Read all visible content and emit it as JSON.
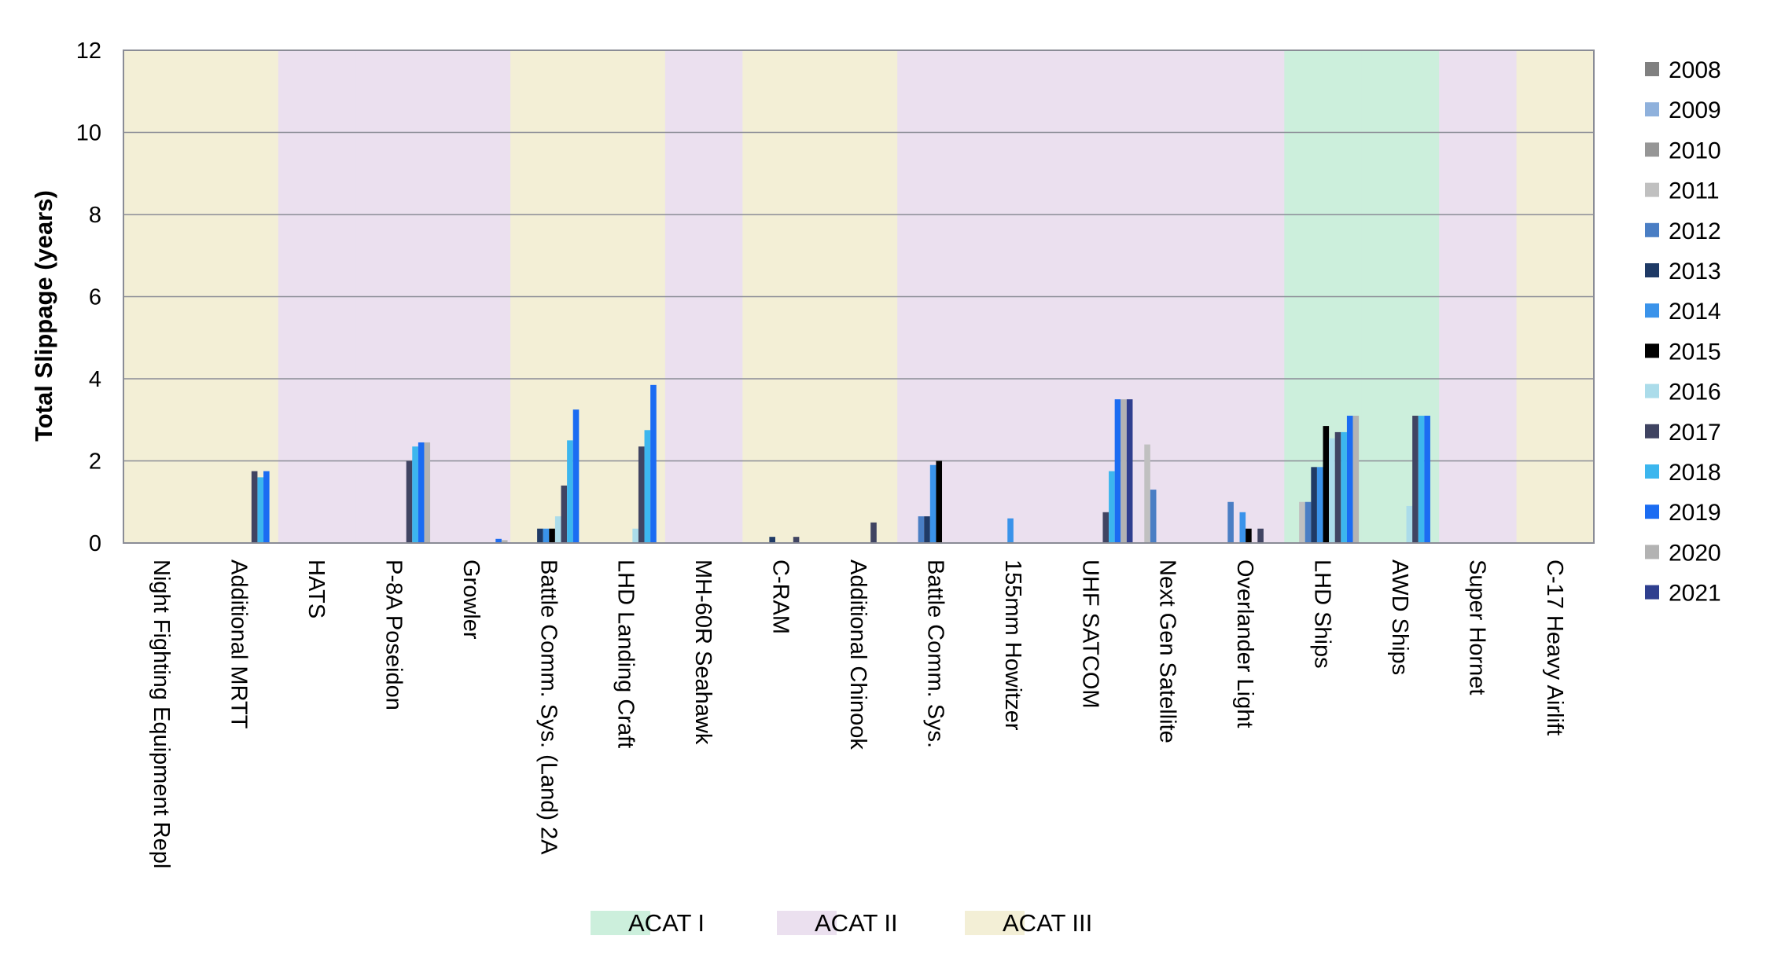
{
  "chart_data": {
    "type": "bar",
    "title": "",
    "xlabel": "",
    "ylabel": "Total Slippage (years)",
    "ylim": [
      0,
      12
    ],
    "yticks": [
      "0",
      "2",
      "4",
      "6",
      "8",
      "10",
      "12"
    ],
    "grid": true,
    "legend_position": "right",
    "categories": [
      "Night Fighting Equipment Repl",
      "Additional MRTT",
      "HATS",
      "P-8A Poseidon",
      "Growler",
      "Battle Comm. Sys. (Land) 2A",
      "LHD Landing Craft",
      "MH-60R Seahawk",
      "C-RAM",
      "Additional Chinook",
      "Battle Comm. Sys.",
      "155mm Howitzer",
      "UHF SATCOM",
      "Next Gen Satellite",
      "Overlander Light",
      "LHD Ships",
      "AWD Ships",
      "Super Hornet",
      "C-17 Heavy Airlift"
    ],
    "category_band": [
      "ACAT III",
      "ACAT III",
      "ACAT II",
      "ACAT II",
      "ACAT II",
      "ACAT III",
      "ACAT III",
      "ACAT II",
      "ACAT III",
      "ACAT III",
      "ACAT II",
      "ACAT II",
      "ACAT II",
      "ACAT II",
      "ACAT II",
      "ACAT I",
      "ACAT I",
      "ACAT II",
      "ACAT III"
    ],
    "bands": [
      {
        "name": "ACAT I",
        "color": "#ccefdc"
      },
      {
        "name": "ACAT II",
        "color": "#ebe0ef"
      },
      {
        "name": "ACAT III",
        "color": "#f3efd6"
      }
    ],
    "series": [
      {
        "name": "2008",
        "color": "#808080",
        "values": [
          0,
          0,
          0,
          0,
          0,
          0,
          0,
          0,
          0,
          0,
          0,
          0,
          0,
          0,
          0,
          0,
          0,
          0,
          0
        ]
      },
      {
        "name": "2009",
        "color": "#8fb1dc",
        "values": [
          0,
          0,
          0,
          0,
          0,
          0,
          0,
          0,
          0,
          0,
          0,
          0,
          0,
          0,
          0,
          0,
          0,
          0,
          0
        ]
      },
      {
        "name": "2010",
        "color": "#969696",
        "values": [
          0,
          0,
          0,
          0,
          0,
          0,
          0,
          0,
          0,
          0,
          0,
          0,
          0,
          0,
          0,
          0,
          0,
          0,
          0
        ]
      },
      {
        "name": "2011",
        "color": "#c0c0c0",
        "values": [
          0,
          0,
          0,
          0,
          0,
          0,
          0,
          0,
          0,
          0,
          0,
          0,
          0,
          2.4,
          0,
          1.0,
          0,
          0,
          0
        ]
      },
      {
        "name": "2012",
        "color": "#4a7ec4",
        "values": [
          0,
          0,
          0,
          0,
          0,
          0,
          0,
          0,
          0,
          0,
          0.65,
          0,
          0,
          1.3,
          1.0,
          1.0,
          0,
          0,
          0
        ]
      },
      {
        "name": "2013",
        "color": "#1f3a66",
        "values": [
          0,
          0,
          0,
          0,
          0,
          0.35,
          0,
          0,
          0.15,
          0,
          0.65,
          0,
          0,
          0,
          0,
          1.85,
          0,
          0,
          0
        ]
      },
      {
        "name": "2014",
        "color": "#3a93ea",
        "values": [
          0,
          0,
          0,
          0,
          0,
          0.35,
          0,
          0,
          0,
          0,
          1.9,
          0.6,
          0,
          0,
          0.75,
          1.85,
          0,
          0,
          0
        ]
      },
      {
        "name": "2015",
        "color": "#000000",
        "values": [
          0,
          0,
          0,
          0,
          0,
          0.35,
          0,
          0,
          0,
          0,
          2.0,
          0,
          0,
          0,
          0.35,
          2.85,
          0,
          0,
          0
        ]
      },
      {
        "name": "2016",
        "color": "#abdcea",
        "values": [
          0,
          0,
          0,
          0,
          0,
          0.65,
          0.35,
          0,
          0,
          0,
          0,
          0,
          0,
          0,
          0,
          2.55,
          0.9,
          0,
          0
        ]
      },
      {
        "name": "2017",
        "color": "#404462",
        "values": [
          0,
          1.75,
          0,
          2.0,
          0,
          1.4,
          2.35,
          0,
          0.15,
          0.5,
          0,
          0,
          0.75,
          0,
          0.35,
          2.7,
          3.1,
          0,
          0
        ]
      },
      {
        "name": "2018",
        "color": "#3cb6ee",
        "values": [
          0,
          1.6,
          0,
          2.35,
          0,
          2.5,
          2.75,
          0,
          0,
          0,
          0,
          0,
          1.75,
          0,
          0,
          2.7,
          3.1,
          0,
          0
        ]
      },
      {
        "name": "2019",
        "color": "#1b6cf2",
        "values": [
          0,
          1.75,
          0,
          2.45,
          0.1,
          3.25,
          3.85,
          0,
          0,
          0,
          0,
          0,
          3.5,
          0,
          0,
          3.1,
          3.1,
          0,
          0
        ]
      },
      {
        "name": "2020",
        "color": "#b3b3b3",
        "values": [
          0,
          0,
          0,
          2.45,
          0.07,
          0,
          0,
          0,
          0,
          0,
          0,
          0,
          3.5,
          0,
          0,
          3.1,
          0,
          0,
          0
        ]
      },
      {
        "name": "2021",
        "color": "#2f3f8f",
        "values": [
          0,
          0,
          0,
          0,
          0,
          0,
          0,
          0,
          0,
          0,
          0,
          0,
          3.5,
          0,
          0,
          0,
          0,
          0,
          0
        ]
      }
    ]
  }
}
